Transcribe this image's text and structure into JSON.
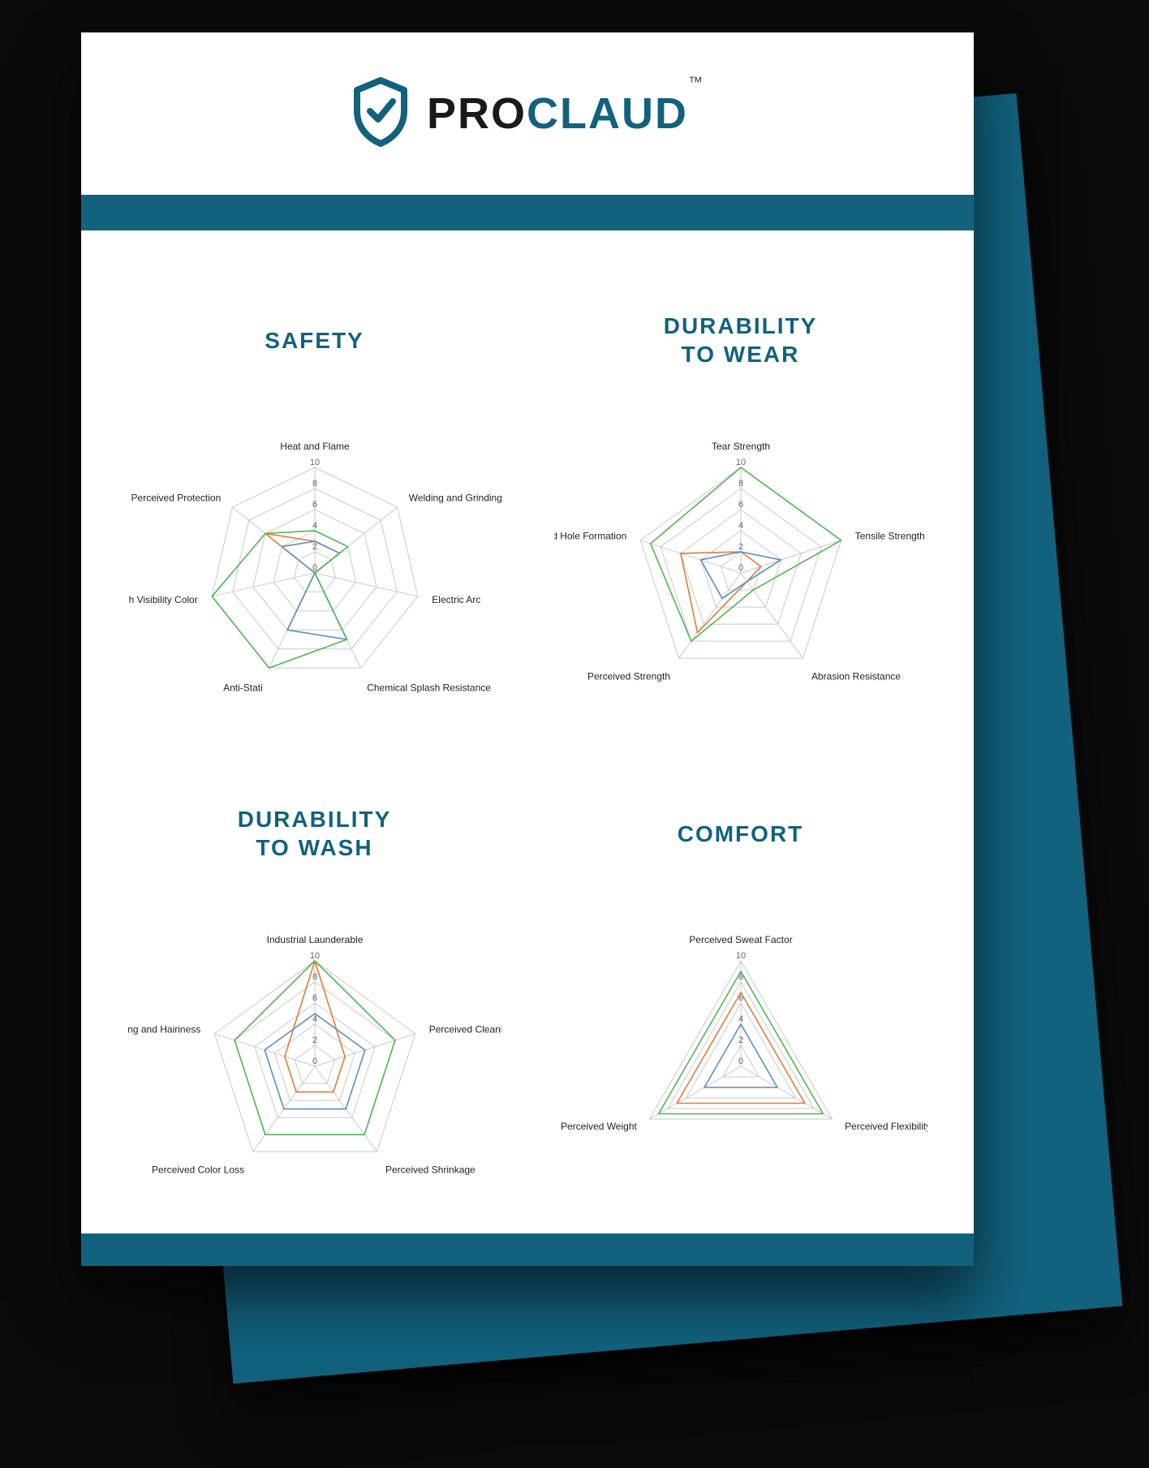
{
  "brand": {
    "pro": "PRO",
    "claud": "CLAUD",
    "tm": "™"
  },
  "colors": {
    "brand": "#12627e",
    "page_bg": "#ffffff",
    "stage_bg": "#0a0a0a",
    "grid": "#c9c9c9",
    "axis_label": "#222222",
    "tick_label": "#666666",
    "series_a": "#e07b3a",
    "series_b": "#5a8fbf",
    "series_c": "#4fb64f"
  },
  "charts": [
    {
      "id": "safety",
      "title": "SAFETY",
      "type": "radar",
      "max": 10,
      "tick_step": 2,
      "axes": [
        "Heat and Flame",
        "Welding and Grinding",
        "Electric Arc",
        "Chemical Splash Resistance",
        "Anti-Stati",
        "High Visibility Color",
        "Perceived Protection"
      ],
      "series": [
        {
          "color": "#e07b3a",
          "values": [
            3,
            3,
            0,
            0,
            6,
            0,
            6
          ]
        },
        {
          "color": "#5a8fbf",
          "values": [
            3,
            3,
            0,
            7,
            6,
            0,
            4
          ]
        },
        {
          "color": "#4fb64f",
          "values": [
            4,
            4,
            0,
            7,
            10,
            10,
            6
          ]
        }
      ],
      "label_fontsize": 12,
      "tick_fontsize": 11,
      "title_fontsize": 28
    },
    {
      "id": "durability-wear",
      "title": "DURABILITY\nTO WEAR",
      "type": "radar",
      "max": 10,
      "tick_step": 2,
      "axes": [
        "Tear Strength",
        "Tensile Strength",
        "Abrasion Resistance",
        "Perceived Strength",
        "Perceived Hole Formation"
      ],
      "series": [
        {
          "color": "#e07b3a",
          "values": [
            2,
            2,
            1,
            7,
            6
          ]
        },
        {
          "color": "#5a8fbf",
          "values": [
            2,
            4,
            1,
            3,
            4
          ]
        },
        {
          "color": "#4fb64f",
          "values": [
            10,
            10,
            2,
            8,
            9
          ]
        }
      ],
      "label_fontsize": 12,
      "tick_fontsize": 11,
      "title_fontsize": 28
    },
    {
      "id": "durability-wash",
      "title": "DURABILITY\nTO WASH",
      "type": "radar",
      "max": 10,
      "tick_step": 2,
      "axes": [
        "Industrial Launderable",
        "Perceived Cleaning Cycles",
        "Perceived Shrinkage",
        "Perceived Color Loss",
        "Perceived Pilling and Hairiness"
      ],
      "series": [
        {
          "color": "#e07b3a",
          "values": [
            10,
            3,
            3,
            3,
            3
          ]
        },
        {
          "color": "#5a8fbf",
          "values": [
            5,
            5,
            5,
            5,
            5
          ]
        },
        {
          "color": "#4fb64f",
          "values": [
            10,
            8,
            8,
            8,
            8
          ]
        }
      ],
      "label_fontsize": 12,
      "tick_fontsize": 11,
      "title_fontsize": 28
    },
    {
      "id": "comfort",
      "title": "COMFORT",
      "type": "radar",
      "max": 10,
      "tick_step": 2,
      "axes": [
        "Perceived Sweat Factor",
        "Perceived Flexibility",
        "Perceived Weight"
      ],
      "series": [
        {
          "color": "#e07b3a",
          "values": [
            7,
            7,
            7
          ]
        },
        {
          "color": "#5a8fbf",
          "values": [
            4,
            4,
            4
          ]
        },
        {
          "color": "#4fb64f",
          "values": [
            9,
            9,
            9
          ]
        }
      ],
      "label_fontsize": 12,
      "tick_fontsize": 11,
      "title_fontsize": 28
    }
  ],
  "radar_style": {
    "chart_size": 460,
    "grid_radius": 130,
    "line_width": 1.6,
    "grid_width": 1,
    "fill_opacity": 0
  }
}
